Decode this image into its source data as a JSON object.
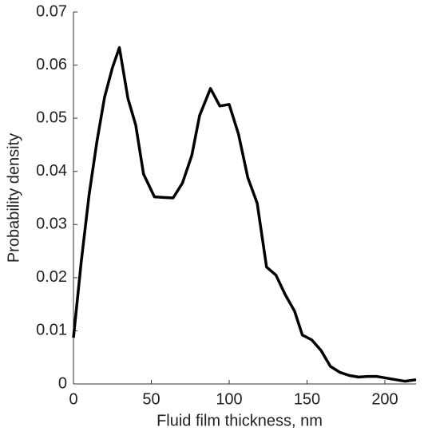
{
  "chart_data": {
    "type": "line",
    "xlabel": "Fluid film thickness, nm",
    "ylabel": "Probability density",
    "series": [
      {
        "name": "Probability density",
        "color": "#000000",
        "x": [
          0,
          5,
          10,
          15,
          20,
          25,
          29.5,
          35,
          40,
          45,
          52,
          58,
          64,
          70,
          76,
          81,
          88,
          94,
          100,
          106,
          112,
          118,
          124,
          130,
          136,
          142,
          147,
          153,
          159,
          165,
          171,
          177,
          183,
          189,
          195,
          201,
          207,
          213,
          220
        ],
        "values": [
          0.0087,
          0.023,
          0.0355,
          0.0455,
          0.054,
          0.0595,
          0.0633,
          0.0537,
          0.0487,
          0.0395,
          0.0352,
          0.0351,
          0.035,
          0.0378,
          0.043,
          0.0505,
          0.0556,
          0.0523,
          0.0526,
          0.047,
          0.0388,
          0.034,
          0.022,
          0.0205,
          0.0168,
          0.0137,
          0.0092,
          0.0083,
          0.0063,
          0.0033,
          0.0022,
          0.0016,
          0.0013,
          0.0014,
          0.0014,
          0.0011,
          0.0008,
          0.0005,
          0.0008
        ]
      }
    ],
    "xlim": [
      0,
      220
    ],
    "xticks": [
      0,
      50,
      100,
      150,
      200
    ],
    "ylim": [
      0,
      0.07
    ],
    "yticks": [
      0,
      0.01,
      0.02,
      0.03,
      0.04,
      0.05,
      0.06,
      0.07
    ]
  }
}
